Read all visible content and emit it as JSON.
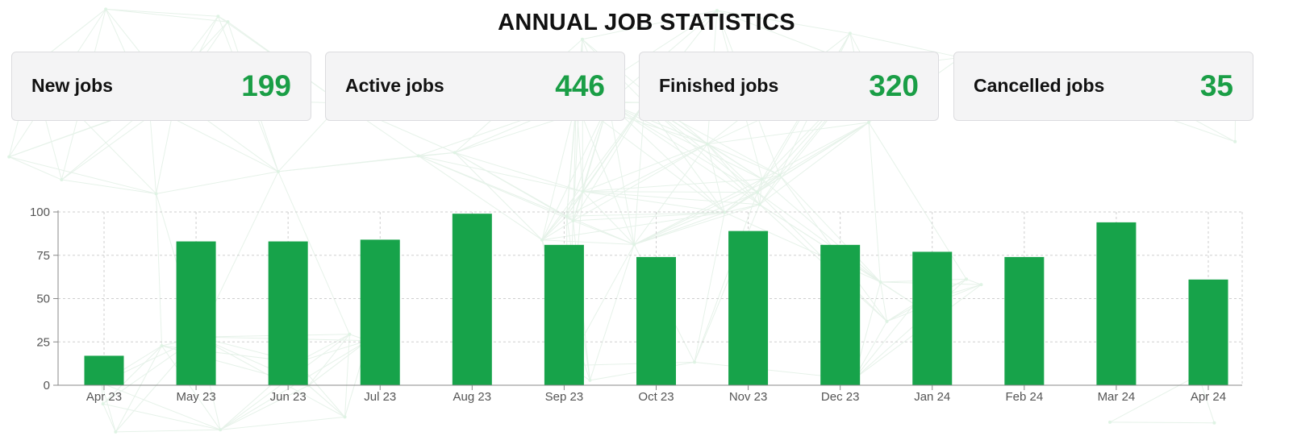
{
  "header": {
    "title": "ANNUAL JOB STATISTICS"
  },
  "stats": [
    {
      "label": "New jobs",
      "value": "199"
    },
    {
      "label": "Active jobs",
      "value": "446"
    },
    {
      "label": "Finished jobs",
      "value": "320"
    },
    {
      "label": "Cancelled jobs",
      "value": "35"
    }
  ],
  "colors": {
    "accent": "#1a9e46",
    "bar": "#17a34a",
    "card_bg": "#f4f4f5"
  },
  "chart_data": {
    "type": "bar",
    "categories": [
      "Apr 23",
      "May 23",
      "Jun 23",
      "Jul 23",
      "Aug 23",
      "Sep 23",
      "Oct 23",
      "Nov 23",
      "Dec 23",
      "Jan 24",
      "Feb 24",
      "Mar 24",
      "Apr 24"
    ],
    "values": [
      17,
      83,
      83,
      84,
      99,
      81,
      74,
      89,
      81,
      77,
      74,
      94,
      61
    ],
    "yticks": [
      "0",
      "25",
      "50",
      "75",
      "100"
    ],
    "ylim": [
      0,
      100
    ],
    "grid": true,
    "legend": "none"
  }
}
